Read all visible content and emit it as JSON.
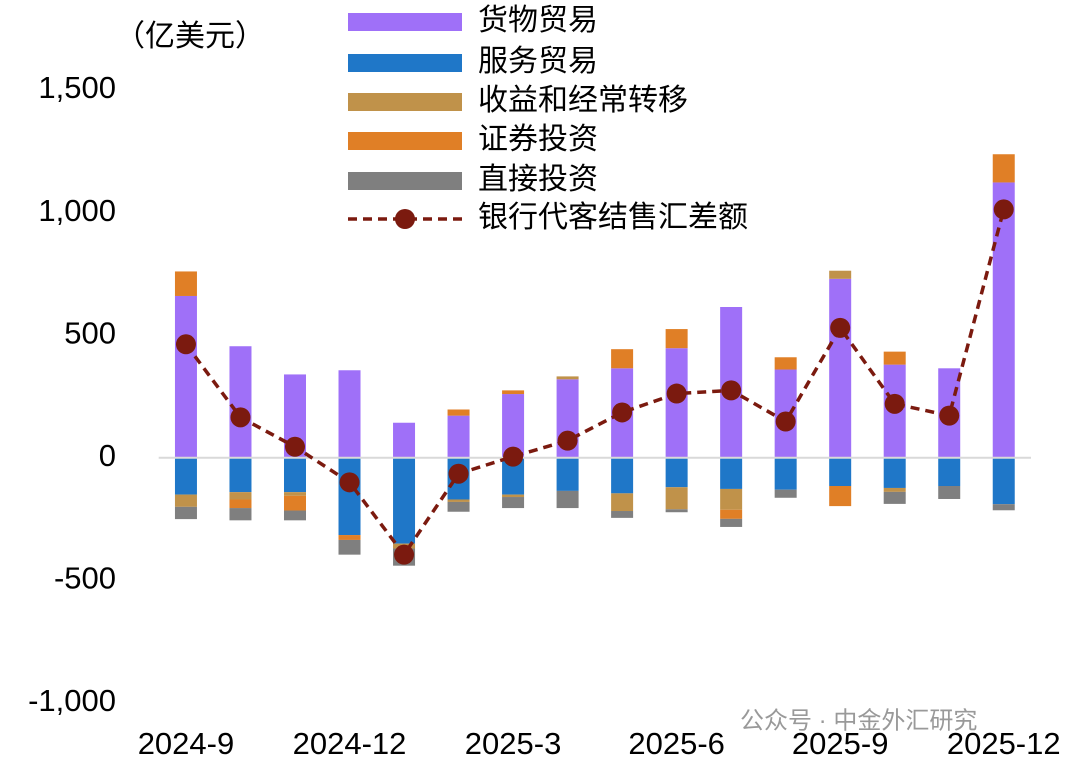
{
  "chart_data": {
    "type": "bar",
    "stacked": true,
    "unit_label": "（亿美元）",
    "watermark": "公众号 · 中金外汇研究",
    "categories": [
      "2024-9",
      null,
      null,
      "2024-12",
      null,
      null,
      "2025-3",
      null,
      null,
      "2025-6",
      null,
      null,
      "2025-9",
      null,
      null,
      "2025-12"
    ],
    "series": [
      {
        "name": "货物贸易",
        "color": "#9f70f8",
        "values": [
          660,
          455,
          340,
          357,
          143,
          172,
          260,
          320,
          365,
          447,
          615,
          360,
          730,
          380,
          365,
          1123
        ]
      },
      {
        "name": "服务贸易",
        "color": "#1f77c8",
        "values": [
          -150,
          -140,
          -140,
          -315,
          -350,
          -170,
          -150,
          -135,
          -145,
          -120,
          -127,
          -130,
          -115,
          -123,
          -115,
          -189
        ]
      },
      {
        "name": "收益和经常转移",
        "color": "#c0924a",
        "values": [
          -50,
          -30,
          -15,
          0,
          -20,
          -10,
          -10,
          12,
          -72,
          -90,
          -85,
          0,
          33,
          -16,
          0,
          0
        ]
      },
      {
        "name": "证券投资",
        "color": "#e07f26",
        "values": [
          100,
          -35,
          -60,
          -20,
          0,
          25,
          15,
          0,
          78,
          78,
          -37,
          50,
          -82,
          53,
          0,
          115
        ]
      },
      {
        "name": "直接投资",
        "color": "#7f7f7f",
        "values": [
          -50,
          -50,
          -40,
          -60,
          -70,
          -40,
          -45,
          -70,
          -28,
          -12,
          -33,
          -33,
          0,
          -49,
          -53,
          -25
        ]
      },
      {
        "name": "银行代客结售汇差额",
        "type": "line",
        "color": "#7b1a0f",
        "values": [
          463,
          165,
          45,
          -100,
          -395,
          -65,
          5,
          70,
          185,
          262,
          275,
          148,
          530,
          220,
          172,
          1013
        ]
      }
    ],
    "ylim": [
      -1000,
      1500
    ],
    "yticks": [
      {
        "value": -1000,
        "label": "-1,000"
      },
      -500,
      0,
      500,
      {
        "value": 1000,
        "label": "1,000"
      },
      {
        "value": 1500,
        "label": "1,500"
      }
    ]
  }
}
